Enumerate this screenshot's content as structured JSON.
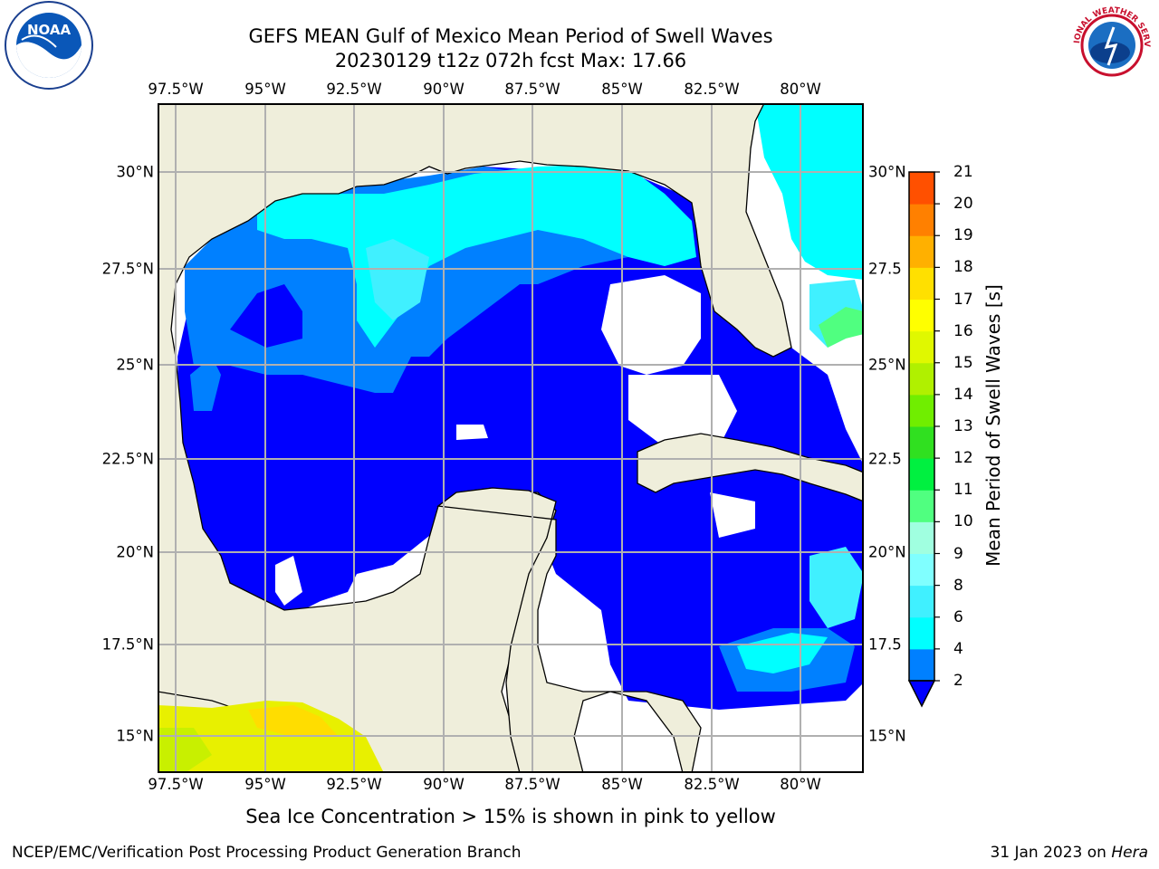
{
  "title": {
    "line1": "GEFS MEAN Gulf of Mexico Mean Period of Swell Waves",
    "line2": "20230129 t12z 072h fcst   Max: 17.66"
  },
  "map": {
    "x_ticks": [
      "97.5°W",
      "95°W",
      "92.5°W",
      "90°W",
      "87.5°W",
      "85°W",
      "82.5°W",
      "80°W"
    ],
    "y_ticks_left": [
      "30°N",
      "27.5°N",
      "25°N",
      "22.5°N",
      "20°N",
      "17.5°N",
      "15°N"
    ],
    "y_ticks_right": [
      "30°N",
      "27.5",
      "25°N",
      "22.5",
      "20°N",
      "17.5",
      "15°N"
    ],
    "colors": {
      "land": "#efeedb",
      "ocean_missing": "#ffffff",
      "grid": "#b0b0b0"
    }
  },
  "colorbar": {
    "label": "Mean Period of Swell Waves [s]",
    "ticks": [
      "21",
      "20",
      "19",
      "18",
      "17",
      "16",
      "15",
      "14",
      "13",
      "12",
      "11",
      "10",
      "9",
      "8",
      "6",
      "4",
      "2"
    ],
    "colors": [
      "#0000ff",
      "#0080ff",
      "#00ffff",
      "#40f0ff",
      "#80ffff",
      "#a0ffe0",
      "#50ff80",
      "#00f040",
      "#30e020",
      "#70ee00",
      "#b0f000",
      "#e0f800",
      "#ffff00",
      "#ffe000",
      "#ffb000",
      "#ff8000",
      "#ff5000",
      "#ff2000"
    ]
  },
  "note": "Sea Ice Concentration > 15% is shown in pink to yellow",
  "footer": {
    "left": "NCEP/EMC/Verification Post Processing Product Generation Branch",
    "right_prefix": "31 Jan 2023 on ",
    "right_host": "Hera"
  },
  "logos": {
    "left": "NOAA",
    "right": "NATIONAL WEATHER SERVICE"
  }
}
